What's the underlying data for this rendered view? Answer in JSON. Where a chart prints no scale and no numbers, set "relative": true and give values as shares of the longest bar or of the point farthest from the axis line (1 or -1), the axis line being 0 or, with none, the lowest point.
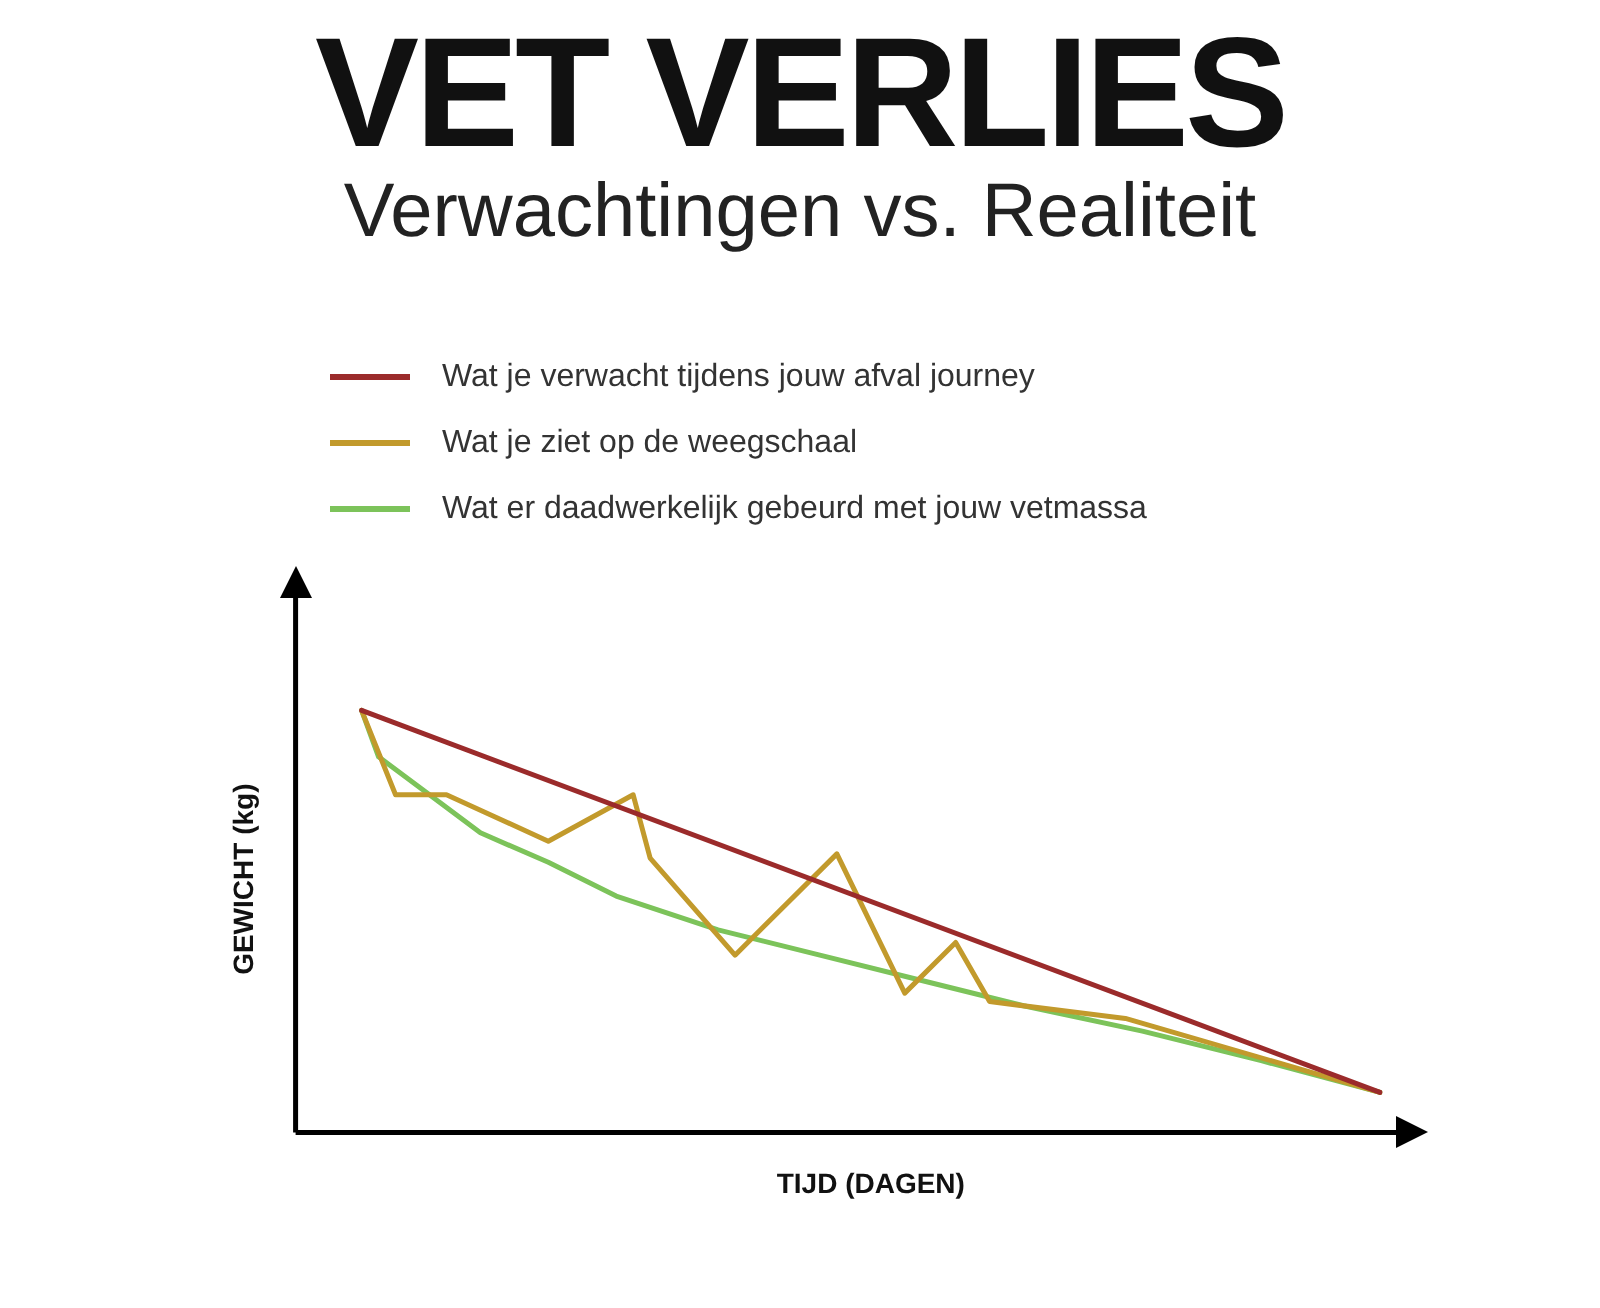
{
  "chart_data": {
    "type": "line",
    "title": "VET VERLIES",
    "subtitle": "Verwachtingen vs. Realiteit",
    "xlabel": "TIJD (DAGEN)",
    "ylabel": "GEWICHT (kg)",
    "relative": true,
    "categories": [
      null,
      null,
      null,
      null,
      null,
      null,
      null,
      null,
      null,
      null,
      null,
      null,
      null,
      null,
      null,
      null,
      null,
      null,
      null,
      null,
      null,
      null,
      null,
      null,
      null,
      null,
      null,
      null,
      null,
      null,
      null,
      null,
      null,
      null,
      null,
      null,
      null,
      null,
      null,
      null,
      null,
      null,
      null,
      null,
      null,
      null,
      null,
      null,
      null,
      null,
      null,
      null,
      null,
      null,
      null,
      null,
      null,
      null,
      null,
      null,
      null
    ],
    "series": [
      {
        "name": "Wat je verwacht tijdens jouw afval journey",
        "color": "#9b2b2b",
        "values": [
          1,
          null,
          null,
          null,
          null,
          null,
          null,
          null,
          null,
          null,
          null,
          null,
          null,
          null,
          null,
          null,
          null,
          null,
          null,
          null,
          null,
          null,
          null,
          null,
          null,
          null,
          null,
          null,
          null,
          null,
          null,
          null,
          null,
          null,
          null,
          null,
          null,
          null,
          null,
          null,
          null,
          null,
          null,
          null,
          null,
          null,
          null,
          null,
          null,
          null,
          null,
          null,
          null,
          null,
          null,
          null,
          null,
          null,
          null,
          null,
          0.095
        ]
      },
      {
        "name": "Wat je ziet op de weegschaal",
        "color": "#c29a2c",
        "values": [
          1,
          null,
          0.8,
          null,
          null,
          0.8,
          null,
          null,
          null,
          null,
          null,
          0.69,
          null,
          null,
          null,
          null,
          0.8,
          0.65,
          null,
          null,
          null,
          null,
          0.42,
          null,
          null,
          null,
          null,
          null,
          0.66,
          null,
          null,
          null,
          0.33,
          null,
          null,
          0.45,
          null,
          0.31,
          null,
          null,
          null,
          null,
          null,
          null,
          null,
          0.27,
          null,
          null,
          null,
          null,
          null,
          null,
          null,
          null,
          null,
          null,
          null,
          null,
          null,
          null,
          0.095
        ]
      },
      {
        "name": "Wat er daadwerkelijk gebeurd met jouw vetmassa",
        "color": "#7cc35a",
        "values": [
          1,
          0.89,
          null,
          null,
          0.8,
          null,
          null,
          0.71,
          null,
          null,
          null,
          0.64,
          null,
          null,
          null,
          0.56,
          null,
          null,
          null,
          null,
          null,
          0.48,
          null,
          null,
          null,
          null,
          null,
          0.42,
          null,
          null,
          null,
          null,
          null,
          0.36,
          null,
          null,
          null,
          null,
          null,
          0.3,
          null,
          null,
          null,
          null,
          null,
          null,
          0.24,
          null,
          null,
          null,
          null,
          null,
          null,
          0.17,
          null,
          null,
          null,
          null,
          null,
          null,
          0.095
        ]
      }
    ],
    "legend": "top left",
    "grid": false,
    "marker": "none",
    "line_style": "solid"
  }
}
